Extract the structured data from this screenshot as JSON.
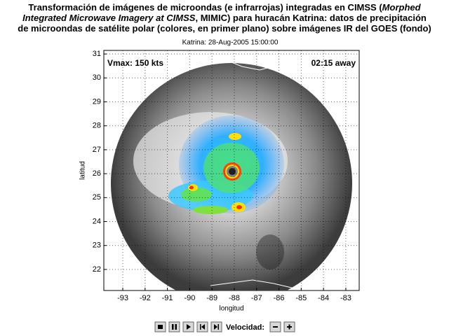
{
  "header": {
    "title_lines": [
      [
        {
          "text": "Transformación de imágenes de microondas (e infrarrojas) integradas en CIMSS (",
          "italic": false
        },
        {
          "text": "Morphed",
          "italic": true
        }
      ],
      [
        {
          "text": "Integrated Microwave Imagery at CIMSS",
          "italic": true
        },
        {
          "text": ", MIMIC) para huracán Katrina: datos de precipitación",
          "italic": false
        }
      ],
      [
        {
          "text": "de microondas de satélite polar (colores, en primer plano) sobre imágenes IR del GOES (fondo)",
          "italic": false
        }
      ]
    ],
    "subtitle": "Katrina: 28-Aug-2005 15:00:00"
  },
  "plot": {
    "xlabel": "longitud",
    "ylabel": "latitud",
    "xlim": [
      -93.85,
      -82.4
    ],
    "ylim": [
      21.12,
      31.15
    ],
    "xticks": [
      -93,
      -92,
      -91,
      -90,
      -89,
      -88,
      -87,
      -86,
      -85,
      -84,
      -83
    ],
    "yticks": [
      22,
      23,
      24,
      25,
      26,
      27,
      28,
      29,
      30,
      31
    ],
    "grid": true,
    "annotations": {
      "vmax": "Vmax: 150 kts",
      "away": "02:15 away"
    }
  },
  "controls": {
    "speed_label": "Velocidad:"
  }
}
